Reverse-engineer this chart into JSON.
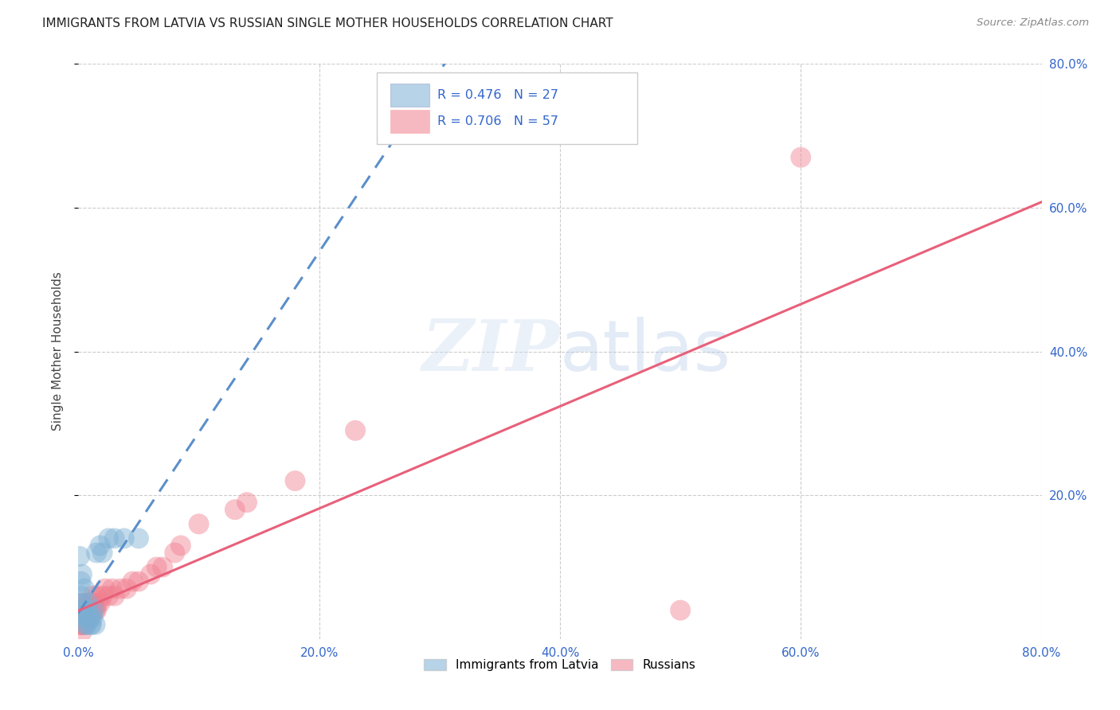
{
  "title": "IMMIGRANTS FROM LATVIA VS RUSSIAN SINGLE MOTHER HOUSEHOLDS CORRELATION CHART",
  "source": "Source: ZipAtlas.com",
  "ylabel": "Single Mother Households",
  "xlim": [
    0.0,
    0.8
  ],
  "ylim": [
    0.0,
    0.8
  ],
  "xticks": [
    0.0,
    0.2,
    0.4,
    0.6,
    0.8
  ],
  "yticks": [
    0.2,
    0.4,
    0.6,
    0.8
  ],
  "xtick_labels": [
    "0.0%",
    "20.0%",
    "40.0%",
    "60.0%",
    "80.0%"
  ],
  "ytick_labels": [
    "20.0%",
    "40.0%",
    "60.0%",
    "80.0%"
  ],
  "legend_bottom": [
    "Immigrants from Latvia",
    "Russians"
  ],
  "legend_top_1": "R = 0.476   N = 27",
  "legend_top_2": "R = 0.706   N = 57",
  "latvia_color": "#7bafd4",
  "russia_color": "#f08090",
  "latvia_line_color": "#5b8fc9",
  "russia_line_color": "#e8607a",
  "watermark": "ZIPatlas",
  "latvia_points": [
    [
      0.001,
      0.115
    ],
    [
      0.002,
      0.08
    ],
    [
      0.002,
      0.06
    ],
    [
      0.003,
      0.05
    ],
    [
      0.003,
      0.09
    ],
    [
      0.004,
      0.04
    ],
    [
      0.005,
      0.03
    ],
    [
      0.005,
      0.07
    ],
    [
      0.006,
      0.02
    ],
    [
      0.006,
      0.03
    ],
    [
      0.007,
      0.04
    ],
    [
      0.007,
      0.02
    ],
    [
      0.008,
      0.05
    ],
    [
      0.009,
      0.03
    ],
    [
      0.01,
      0.02
    ],
    [
      0.01,
      0.03
    ],
    [
      0.011,
      0.02
    ],
    [
      0.012,
      0.03
    ],
    [
      0.013,
      0.04
    ],
    [
      0.014,
      0.02
    ],
    [
      0.015,
      0.12
    ],
    [
      0.018,
      0.13
    ],
    [
      0.02,
      0.12
    ],
    [
      0.025,
      0.14
    ],
    [
      0.03,
      0.14
    ],
    [
      0.038,
      0.14
    ],
    [
      0.05,
      0.14
    ]
  ],
  "russia_points": [
    [
      0.001,
      0.04
    ],
    [
      0.001,
      0.03
    ],
    [
      0.001,
      0.02
    ],
    [
      0.002,
      0.05
    ],
    [
      0.002,
      0.04
    ],
    [
      0.002,
      0.03
    ],
    [
      0.002,
      0.02
    ],
    [
      0.003,
      0.04
    ],
    [
      0.003,
      0.03
    ],
    [
      0.003,
      0.02
    ],
    [
      0.003,
      0.01
    ],
    [
      0.004,
      0.04
    ],
    [
      0.004,
      0.03
    ],
    [
      0.004,
      0.02
    ],
    [
      0.005,
      0.05
    ],
    [
      0.005,
      0.03
    ],
    [
      0.005,
      0.02
    ],
    [
      0.006,
      0.04
    ],
    [
      0.006,
      0.03
    ],
    [
      0.007,
      0.04
    ],
    [
      0.007,
      0.03
    ],
    [
      0.008,
      0.05
    ],
    [
      0.008,
      0.03
    ],
    [
      0.009,
      0.04
    ],
    [
      0.009,
      0.03
    ],
    [
      0.01,
      0.05
    ],
    [
      0.01,
      0.03
    ],
    [
      0.011,
      0.04
    ],
    [
      0.012,
      0.06
    ],
    [
      0.012,
      0.04
    ],
    [
      0.013,
      0.05
    ],
    [
      0.014,
      0.04
    ],
    [
      0.015,
      0.06
    ],
    [
      0.015,
      0.04
    ],
    [
      0.016,
      0.05
    ],
    [
      0.018,
      0.05
    ],
    [
      0.02,
      0.06
    ],
    [
      0.022,
      0.07
    ],
    [
      0.025,
      0.06
    ],
    [
      0.028,
      0.07
    ],
    [
      0.03,
      0.06
    ],
    [
      0.035,
      0.07
    ],
    [
      0.04,
      0.07
    ],
    [
      0.045,
      0.08
    ],
    [
      0.05,
      0.08
    ],
    [
      0.06,
      0.09
    ],
    [
      0.065,
      0.1
    ],
    [
      0.07,
      0.1
    ],
    [
      0.08,
      0.12
    ],
    [
      0.085,
      0.13
    ],
    [
      0.1,
      0.16
    ],
    [
      0.13,
      0.18
    ],
    [
      0.14,
      0.19
    ],
    [
      0.18,
      0.22
    ],
    [
      0.23,
      0.29
    ],
    [
      0.5,
      0.04
    ],
    [
      0.6,
      0.67
    ]
  ]
}
